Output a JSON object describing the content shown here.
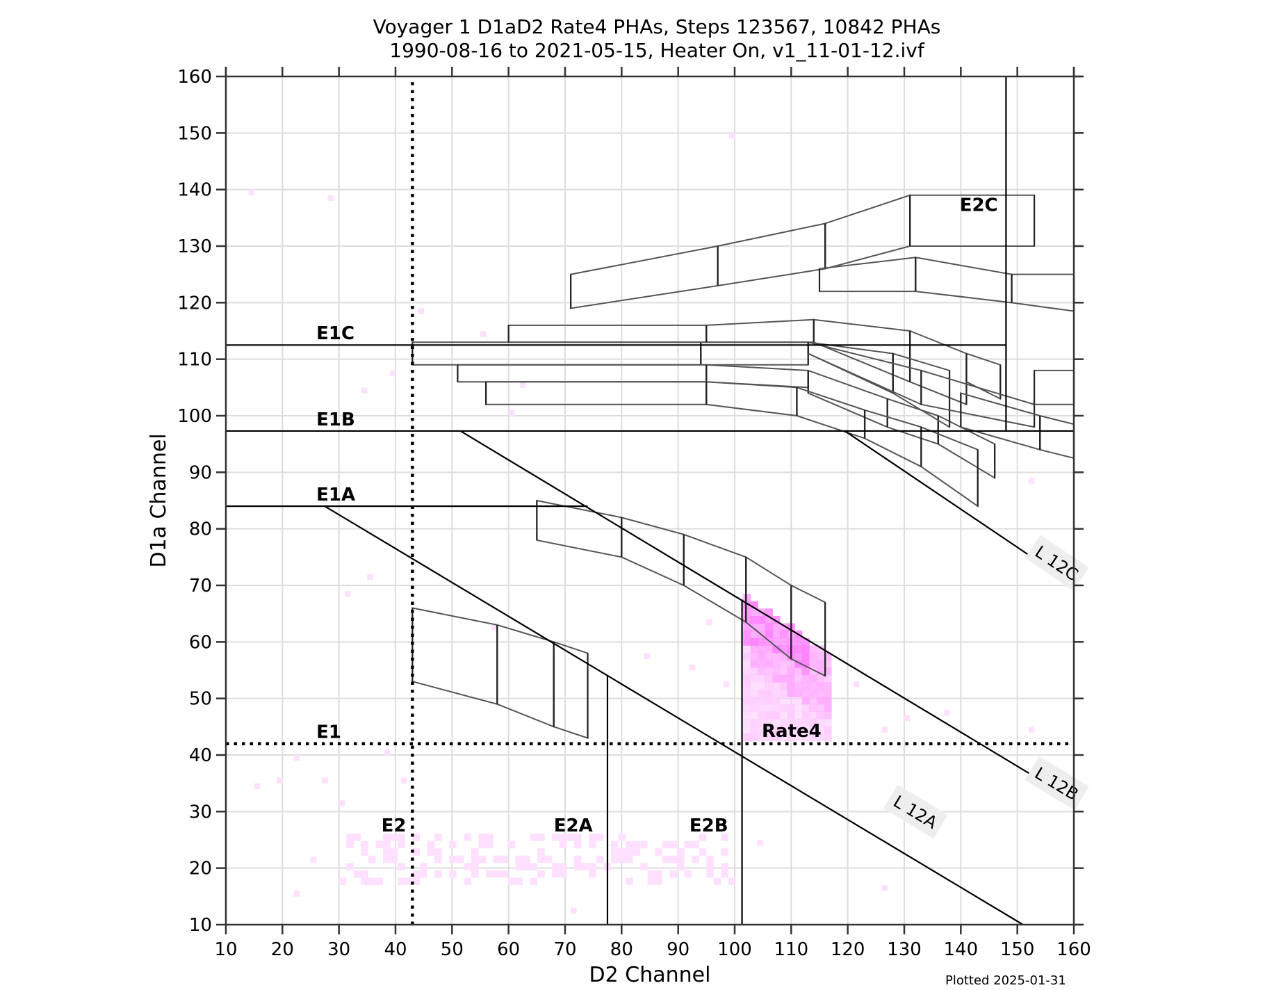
{
  "chart_data": {
    "type": "heatmap",
    "title": "Voyager 1 D1aD2 Rate4 PHAs, Steps 123567, 10842 PHAs",
    "subtitle": "1990-08-16 to 2021-05-15, Heater On, v1_11-01-12.ivf",
    "xlabel": "D2 Channel",
    "ylabel": "D1a Channel",
    "xlim": [
      10,
      160
    ],
    "ylim": [
      10,
      160
    ],
    "xticks": [
      10,
      20,
      30,
      40,
      50,
      60,
      70,
      80,
      90,
      100,
      110,
      120,
      130,
      140,
      150,
      160
    ],
    "yticks": [
      10,
      20,
      30,
      40,
      50,
      60,
      70,
      80,
      90,
      100,
      110,
      120,
      130,
      140,
      150,
      160
    ],
    "grid": true,
    "footer": "Plotted 2025-01-31",
    "threshold_lines": [
      {
        "name": "E1C",
        "type": "solid",
        "points": [
          [
            10,
            112.5
          ],
          [
            148,
            112.5
          ]
        ],
        "label": "E1C",
        "label_at": [
          26,
          113.5
        ]
      },
      {
        "name": "E1B",
        "type": "solid",
        "points": [
          [
            10,
            97.3
          ],
          [
            160,
            97.3
          ]
        ],
        "label": "E1B",
        "label_at": [
          26,
          98.3
        ]
      },
      {
        "name": "E1A",
        "type": "solid",
        "points": [
          [
            10,
            84
          ],
          [
            74,
            84
          ]
        ],
        "label": "E1A",
        "label_at": [
          26,
          85
        ]
      },
      {
        "name": "E2C-vertical",
        "type": "solid",
        "points": [
          [
            148,
            97.3
          ],
          [
            148,
            160
          ]
        ]
      },
      {
        "name": "E1",
        "type": "dotted",
        "points": [
          [
            10,
            42
          ],
          [
            160,
            42
          ]
        ],
        "label": "E1",
        "label_at": [
          26,
          43
        ]
      },
      {
        "name": "E2",
        "type": "dotted",
        "points": [
          [
            43,
            10
          ],
          [
            43,
            159
          ]
        ],
        "label": "E2",
        "label_at": [
          37.5,
          26.5
        ]
      },
      {
        "name": "E2A",
        "type": "solid",
        "points": [
          [
            77.5,
            10
          ],
          [
            77.5,
            54
          ]
        ],
        "label": "E2A",
        "label_at": [
          68,
          26.5
        ]
      },
      {
        "name": "E2B",
        "type": "solid",
        "points": [
          [
            101.3,
            10
          ],
          [
            101.3,
            67.5
          ]
        ],
        "label": "E2B",
        "label_at": [
          92,
          26.5
        ]
      },
      {
        "name": "L12A",
        "type": "solid",
        "points": [
          [
            27.5,
            84
          ],
          [
            151,
            10
          ]
        ],
        "label": "L 12A",
        "label_at": [
          132,
          30
        ]
      },
      {
        "name": "L12B",
        "type": "solid",
        "points": [
          [
            51.5,
            97.3
          ],
          [
            160,
            32
          ]
        ],
        "label": "L 12B",
        "label_at": [
          157,
          35
        ]
      },
      {
        "name": "L12C",
        "type": "solid",
        "points": [
          [
            119.5,
            97.3
          ],
          [
            160,
            70
          ]
        ],
        "label": "L 12C",
        "label_at": [
          157,
          74
        ]
      }
    ],
    "region_labels": [
      {
        "text": "E2C",
        "at": [
          139.8,
          136.2
        ]
      },
      {
        "text": "Rate4",
        "at": [
          104.8,
          43.2
        ]
      }
    ],
    "boxes": [
      {
        "name": "low-band",
        "polys": [
          [
            [
              43,
              66
            ],
            [
              58,
              63
            ],
            [
              58,
              49
            ],
            [
              43,
              53
            ]
          ],
          [
            [
              58,
              63
            ],
            [
              68,
              60
            ],
            [
              68,
              45
            ],
            [
              58,
              49
            ]
          ],
          [
            [
              68,
              60
            ],
            [
              74,
              58
            ],
            [
              74,
              43
            ],
            [
              68,
              45
            ]
          ]
        ]
      },
      {
        "name": "mid-band",
        "polys": [
          [
            [
              65,
              85
            ],
            [
              80,
              82
            ],
            [
              80,
              75
            ],
            [
              65,
              78
            ]
          ],
          [
            [
              80,
              82
            ],
            [
              91,
              79
            ],
            [
              91,
              70
            ],
            [
              80,
              75
            ]
          ],
          [
            [
              91,
              79
            ],
            [
              102,
              75
            ],
            [
              102,
              63.5
            ],
            [
              91,
              70
            ]
          ],
          [
            [
              102,
              75
            ],
            [
              110,
              70
            ],
            [
              110,
              57
            ],
            [
              102,
              63.5
            ]
          ],
          [
            [
              110,
              70
            ],
            [
              116,
              67
            ],
            [
              116,
              54
            ],
            [
              110,
              57
            ]
          ]
        ]
      },
      {
        "name": "row-112",
        "polys": [
          [
            [
              43,
              113
            ],
            [
              94,
              113
            ],
            [
              94,
              109
            ],
            [
              43,
              109
            ]
          ],
          [
            [
              94,
              113
            ],
            [
              113,
              113
            ],
            [
              113,
              109
            ],
            [
              94,
              109
            ]
          ]
        ]
      },
      {
        "name": "row-116",
        "polys": [
          [
            [
              60,
              116
            ],
            [
              95,
              116
            ],
            [
              95,
              113
            ],
            [
              60,
              113
            ]
          ],
          [
            [
              95,
              116
            ],
            [
              114,
              117
            ],
            [
              114,
              113
            ],
            [
              95,
              113
            ]
          ],
          [
            [
              114,
              117
            ],
            [
              131,
              115
            ],
            [
              131,
              106
            ],
            [
              114,
              113
            ]
          ],
          [
            [
              131,
              115
            ],
            [
              141,
              111
            ],
            [
              141,
              102
            ],
            [
              131,
              106
            ]
          ],
          [
            [
              141,
              111
            ],
            [
              147,
              109
            ],
            [
              147,
              103
            ],
            [
              141,
              106
            ]
          ]
        ]
      },
      {
        "name": "row-109",
        "polys": [
          [
            [
              51,
              109
            ],
            [
              95,
              109
            ],
            [
              95,
              106
            ],
            [
              51,
              106
            ]
          ],
          [
            [
              95,
              109
            ],
            [
              113,
              108
            ],
            [
              113,
              105
            ],
            [
              95,
              106
            ]
          ],
          [
            [
              113,
              108
            ],
            [
              127,
              103
            ],
            [
              127,
              98
            ],
            [
              113,
              104
            ]
          ],
          [
            [
              127,
              103
            ],
            [
              136,
              100
            ],
            [
              136,
              95
            ],
            [
              127,
              98
            ]
          ],
          [
            [
              136,
              100
            ],
            [
              146,
              95
            ],
            [
              146,
              89
            ],
            [
              136,
              95
            ]
          ]
        ]
      },
      {
        "name": "row-106",
        "polys": [
          [
            [
              56,
              106
            ],
            [
              95,
              106
            ],
            [
              95,
              102
            ],
            [
              56,
              102
            ]
          ],
          [
            [
              95,
              106
            ],
            [
              111,
              105
            ],
            [
              111,
              100
            ],
            [
              95,
              102
            ]
          ],
          [
            [
              111,
              105
            ],
            [
              123,
              101
            ],
            [
              123,
              96
            ],
            [
              111,
              100
            ]
          ],
          [
            [
              123,
              101
            ],
            [
              133,
              98
            ],
            [
              133,
              91
            ],
            [
              123,
              96
            ]
          ],
          [
            [
              133,
              98
            ],
            [
              143,
              94
            ],
            [
              143,
              84
            ],
            [
              133,
              91
            ]
          ]
        ]
      },
      {
        "name": "row-113b",
        "polys": [
          [
            [
              113,
              113
            ],
            [
              128,
              111
            ],
            [
              128,
              104
            ],
            [
              113,
              111
            ]
          ],
          [
            [
              128,
              111
            ],
            [
              138,
              108
            ],
            [
              138,
              98
            ],
            [
              128,
              104
            ]
          ]
        ]
      },
      {
        "name": "row-right",
        "polys": [
          [
            [
              113,
              113
            ],
            [
              133,
              108
            ],
            [
              133,
              102
            ],
            [
              113,
              111
            ]
          ],
          [
            [
              133,
              108
            ],
            [
              153,
              102
            ],
            [
              153,
              98
            ],
            [
              133,
              102
            ]
          ],
          [
            [
              153,
              108
            ],
            [
              160,
              108
            ],
            [
              160,
              102
            ],
            [
              153,
              102
            ]
          ],
          [
            [
              140,
              104
            ],
            [
              154,
              100
            ],
            [
              154,
              94
            ],
            [
              140,
              98
            ]
          ],
          [
            [
              154,
              100
            ],
            [
              160,
              98.5
            ],
            [
              160,
              92.5
            ],
            [
              154,
              94
            ]
          ]
        ]
      },
      {
        "name": "upper-band",
        "polys": [
          [
            [
              71,
              125
            ],
            [
              97,
              130
            ],
            [
              97,
              123
            ],
            [
              71,
              119
            ]
          ],
          [
            [
              97,
              130
            ],
            [
              116,
              134
            ],
            [
              116,
              126
            ],
            [
              97,
              123
            ]
          ],
          [
            [
              116,
              134
            ],
            [
              131,
              139
            ],
            [
              131,
              130
            ],
            [
              116,
              126
            ]
          ],
          [
            [
              131,
              139
            ],
            [
              153,
              139
            ],
            [
              153,
              130
            ],
            [
              131,
              130
            ]
          ],
          [
            [
              115,
              126
            ],
            [
              132,
              128
            ],
            [
              132,
              122
            ],
            [
              115,
              122
            ]
          ],
          [
            [
              132,
              128
            ],
            [
              149,
              125
            ],
            [
              149,
              120
            ],
            [
              132,
              122
            ]
          ],
          [
            [
              149,
              125
            ],
            [
              160,
              125
            ],
            [
              160,
              118.5
            ],
            [
              149,
              120
            ]
          ]
        ]
      }
    ],
    "density_regions": [
      {
        "name": "rate4-core",
        "x_range": [
          101,
          117
        ],
        "y_range": [
          42,
          68
        ],
        "peak": [
          104,
          64
        ],
        "color": "#ff80ff"
      },
      {
        "name": "low-d1a-scatter",
        "x_range": [
          30,
          100
        ],
        "y_range": [
          17,
          26
        ],
        "color": "#ffe6ff"
      }
    ],
    "scatter_points": [
      [
        14,
        139
      ],
      [
        28,
        138
      ],
      [
        99,
        149
      ],
      [
        57,
        62
      ],
      [
        35,
        71
      ],
      [
        31,
        68
      ],
      [
        44,
        118
      ],
      [
        39,
        107
      ],
      [
        34,
        104
      ],
      [
        55,
        114
      ],
      [
        60,
        100
      ],
      [
        62,
        105
      ],
      [
        22,
        39
      ],
      [
        27,
        35
      ],
      [
        30,
        31
      ],
      [
        38,
        40
      ],
      [
        41,
        35
      ],
      [
        19,
        35
      ],
      [
        15,
        34
      ],
      [
        22,
        15
      ],
      [
        25,
        21
      ],
      [
        71,
        12
      ],
      [
        84,
        57
      ],
      [
        95,
        63
      ],
      [
        92,
        55
      ],
      [
        152,
        88
      ],
      [
        126,
        44
      ],
      [
        130,
        46
      ],
      [
        137,
        47
      ],
      [
        121,
        52
      ],
      [
        98,
        52
      ],
      [
        152,
        44
      ],
      [
        126,
        16
      ],
      [
        104,
        24
      ]
    ]
  },
  "colors": {
    "axis": "#333333",
    "grid": "#dddddd",
    "box_stroke": "#555555",
    "box_divider": "#222222",
    "label_box_bg": "#eeeeee",
    "density_light": "#ffccff",
    "density_mid": "#ffaaff",
    "density_peak": "#ff80ff",
    "scatter": "#ffe0ff"
  }
}
